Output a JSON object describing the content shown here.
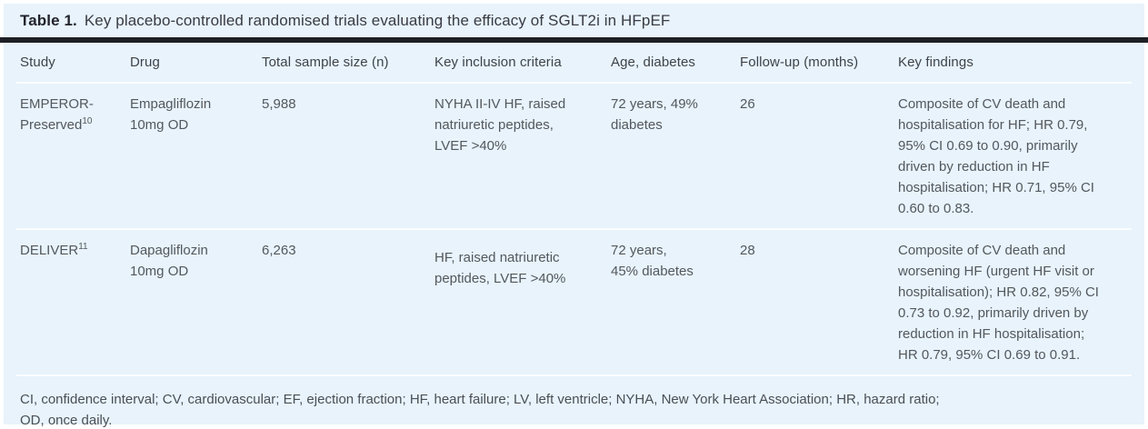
{
  "table": {
    "caption_label": "Table 1.",
    "caption_text": "Key placebo-controlled randomised trials evaluating the efficacy of SGLT2i in HFpEF",
    "columns": [
      "Study",
      "Drug",
      "Total sample size (n)",
      "Key inclusion criteria",
      "Age, diabetes",
      "Follow-up (months)",
      "Key findings"
    ],
    "rows": [
      {
        "study": "EMPEROR-\nPreserved",
        "study_ref": "10",
        "drug": "Empagliflozin\n10mg OD",
        "sample_size": "5,988",
        "inclusion": "NYHA II-IV HF, raised\nnatriuretic peptides,\nLVEF >40%",
        "age_diabetes": "72 years, 49%\ndiabetes",
        "followup": "26",
        "findings": "Composite of CV death and\nhospitalisation for HF; HR 0.79,\n95% CI 0.69 to 0.90, primarily\ndriven by reduction in HF\nhospitalisation; HR 0.71, 95% CI\n0.60 to 0.83."
      },
      {
        "study": "DELIVER",
        "study_ref": "11",
        "drug": "Dapagliflozin\n10mg OD",
        "sample_size": "6,263",
        "inclusion": "HF, raised natriuretic\npeptides, LVEF >40%",
        "age_diabetes": "72 years,\n45% diabetes",
        "followup": "28",
        "findings": "Composite of CV death and\nworsening HF (urgent HF visit or\nhospitalisation); HR 0.82, 95% CI\n0.73 to 0.92, primarily driven by\nreduction in HF hospitalisation;\nHR 0.79, 95% CI 0.69 to 0.91."
      }
    ],
    "footnote_line1": "CI, confidence interval; CV, cardiovascular; EF, ejection fraction; HF, heart failure; LV, left ventricle; NYHA, New York Heart Association; HR, hazard ratio;",
    "footnote_line2": "OD, once daily.",
    "colors": {
      "card_background": "#e8f3fb",
      "title_rule": "#1e2026",
      "row_separator": "#fbfdff",
      "body_text": "#53585e"
    }
  }
}
